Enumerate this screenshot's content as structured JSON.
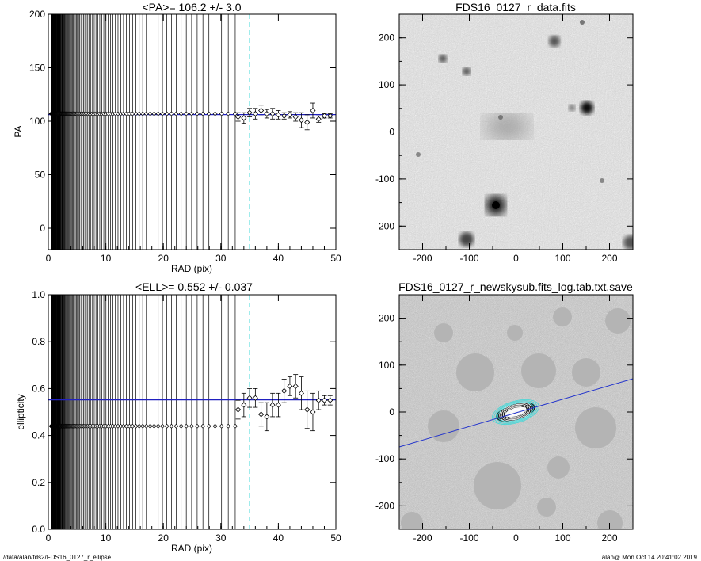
{
  "chart_data": [
    {
      "type": "scatter",
      "title": "<PA>= 106.2 +/-   3.0",
      "xlabel": "RAD (pix)",
      "ylabel": "PA",
      "xlim": [
        0,
        50
      ],
      "ylim": [
        -20,
        200
      ],
      "xticks": [
        "0",
        "10",
        "20",
        "30",
        "40",
        "50"
      ],
      "yticks": [
        "0",
        "50",
        "100",
        "150",
        "200"
      ],
      "mean_line": 106.2,
      "dashed_vline_x": 35,
      "vline_extent": [
        0.5,
        32.5
      ],
      "series": [
        {
          "x": [
            1,
            2,
            3,
            4,
            5,
            6,
            7,
            8,
            9,
            10,
            11,
            12,
            13,
            14,
            15,
            16,
            17,
            18,
            19,
            20,
            21,
            22,
            23,
            24,
            25,
            26,
            27,
            28,
            29,
            30,
            31,
            32
          ],
          "y": [
            107,
            107,
            107,
            107,
            107,
            107,
            107,
            107,
            107,
            107,
            107,
            107,
            107,
            107,
            107,
            107,
            107,
            107,
            107,
            107,
            107,
            107,
            107,
            107,
            107,
            107,
            107,
            107,
            107,
            107,
            107,
            107
          ]
        },
        {
          "x": [
            33,
            34,
            35,
            36,
            37,
            38,
            39,
            40,
            41,
            42,
            43,
            44,
            45,
            46,
            47,
            48,
            49
          ],
          "y": [
            104,
            103,
            108,
            107,
            110,
            107,
            107,
            106,
            105,
            106,
            104,
            101,
            99,
            110,
            102,
            105,
            105
          ],
          "err": [
            4,
            5,
            4,
            5,
            5,
            4,
            5,
            4,
            3,
            3,
            4,
            7,
            7,
            7,
            3,
            2,
            2
          ]
        }
      ]
    },
    {
      "type": "image",
      "title": "FDS16_0127_r_data.fits",
      "xlim": [
        -250,
        250
      ],
      "ylim": [
        -250,
        250
      ],
      "xticks": [
        "-200",
        "-100",
        "0",
        "100",
        "200"
      ],
      "yticks": [
        "-200",
        "-100",
        "0",
        "100",
        "200"
      ]
    },
    {
      "type": "scatter",
      "title": "<ELL>= 0.552 +/-  0.037",
      "xlabel": "RAD (pix)",
      "ylabel": "ellipticity",
      "xlim": [
        0,
        50
      ],
      "ylim": [
        0,
        1
      ],
      "xticks": [
        "0",
        "10",
        "20",
        "30",
        "40",
        "50"
      ],
      "yticks": [
        "0.0",
        "0.2",
        "0.4",
        "0.6",
        "0.8",
        "1.0"
      ],
      "mean_line": 0.552,
      "dashed_vline_x": 35,
      "vline_extent": [
        0.5,
        32.5
      ],
      "series": [
        {
          "x": [
            1,
            2,
            3,
            4,
            5,
            6,
            7,
            8,
            9,
            10,
            11,
            12,
            13,
            14,
            15,
            16,
            17,
            18,
            19,
            20,
            21,
            22,
            23,
            24,
            25,
            26,
            27,
            28,
            29,
            30,
            31,
            32
          ],
          "y": [
            0.44,
            0.44,
            0.44,
            0.44,
            0.44,
            0.44,
            0.44,
            0.44,
            0.44,
            0.44,
            0.44,
            0.44,
            0.44,
            0.44,
            0.44,
            0.44,
            0.44,
            0.44,
            0.44,
            0.44,
            0.44,
            0.44,
            0.44,
            0.44,
            0.44,
            0.44,
            0.44,
            0.44,
            0.44,
            0.44,
            0.44,
            0.44
          ]
        },
        {
          "x": [
            33,
            34,
            35,
            36,
            37,
            38,
            39,
            40,
            41,
            42,
            43,
            44,
            45,
            46,
            47,
            48,
            49
          ],
          "y": [
            0.51,
            0.53,
            0.56,
            0.56,
            0.49,
            0.48,
            0.53,
            0.53,
            0.59,
            0.61,
            0.61,
            0.58,
            0.51,
            0.5,
            0.55,
            0.55,
            0.55
          ],
          "err": [
            0.04,
            0.05,
            0.04,
            0.04,
            0.05,
            0.06,
            0.05,
            0.05,
            0.05,
            0.04,
            0.05,
            0.07,
            0.08,
            0.08,
            0.04,
            0.02,
            0.02
          ]
        }
      ]
    },
    {
      "type": "image",
      "title": "FDS16_0127_r_newskysub.fits_log.tab.txt.save",
      "xlim": [
        -250,
        250
      ],
      "ylim": [
        -250,
        250
      ],
      "xticks": [
        "-200",
        "-100",
        "0",
        "100",
        "200"
      ],
      "yticks": [
        "-200",
        "-100",
        "0",
        "100",
        "200"
      ]
    }
  ],
  "footer": {
    "left": "/data/alan/fds2/FDS16_0127_r_ellipse",
    "right": "alan@  Mon Oct 14 20:41:02 2019"
  },
  "colors": {
    "mean_line": "#2020c0",
    "dashed_line": "#40d8d8",
    "major_axis_line": "#2233cc",
    "ellipses": "#40d8d8"
  }
}
